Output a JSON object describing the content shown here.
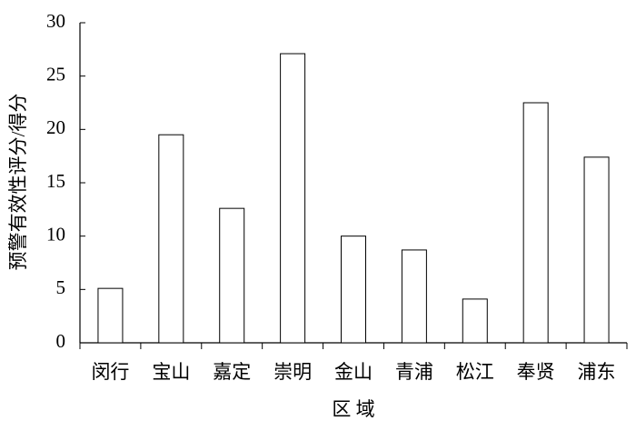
{
  "chart_data": {
    "type": "bar",
    "x_label": "区 域",
    "y_label": "预警有效性评分/得分",
    "categories": [
      "闵行",
      "宝山",
      "嘉定",
      "崇明",
      "金山",
      "青浦",
      "松江",
      "奉贤",
      "浦东"
    ],
    "values": [
      5.1,
      19.5,
      12.6,
      27.1,
      10.0,
      8.7,
      4.1,
      22.5,
      17.4
    ],
    "color": "#ffffff",
    "ylim": [
      0,
      30
    ],
    "yticks": [
      0,
      5,
      10,
      15,
      20,
      25,
      30
    ],
    "grid": false
  }
}
